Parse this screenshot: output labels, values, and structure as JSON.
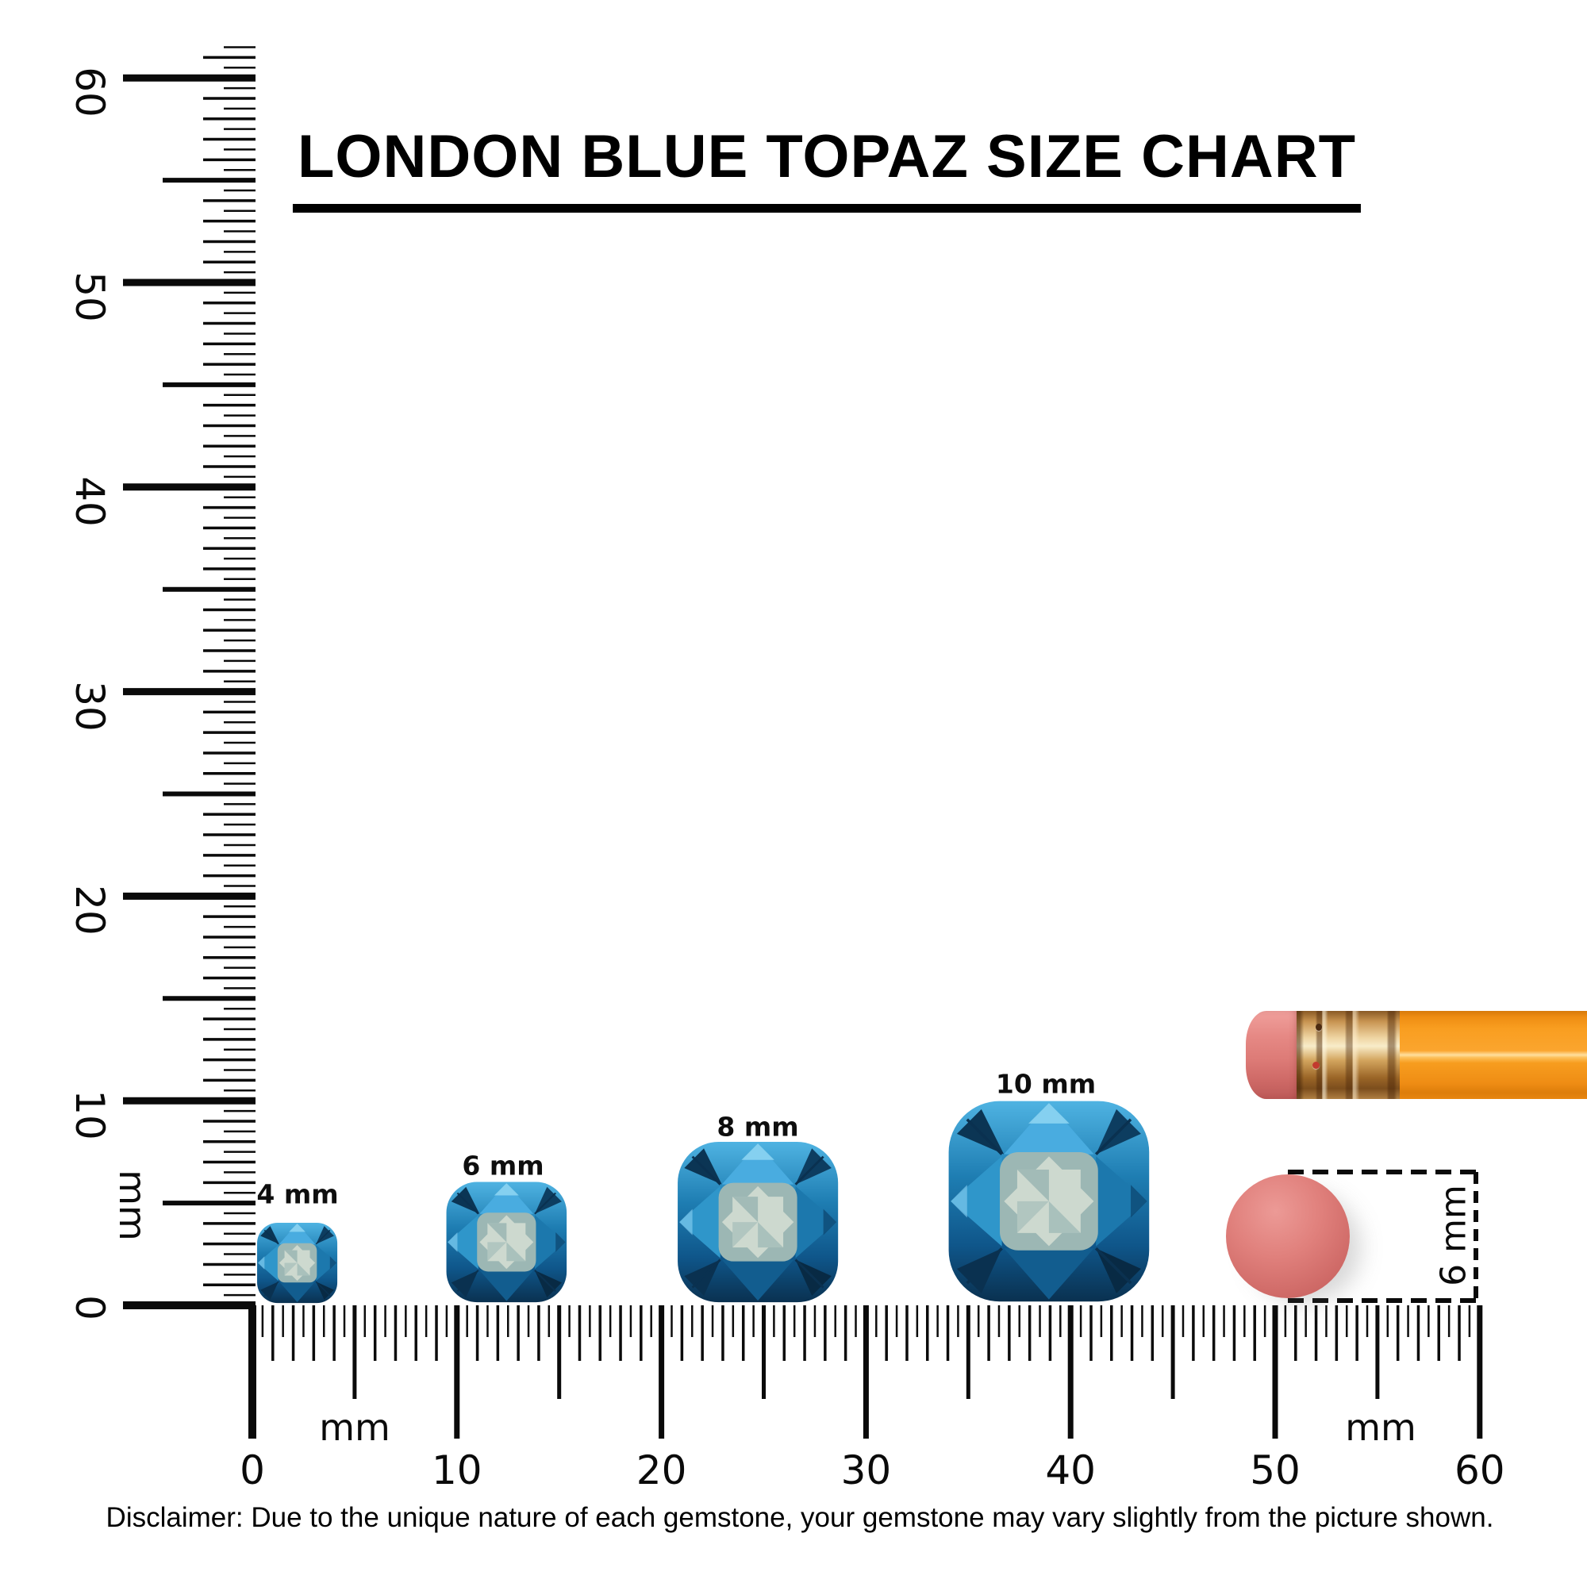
{
  "title": "LONDON BLUE TOPAZ SIZE CHART",
  "rulers": {
    "vertical": {
      "unit_label": "mm",
      "tick_labels": [
        "60",
        "50",
        "40",
        "30",
        "20",
        "10",
        "0"
      ],
      "range_mm": [
        0,
        60
      ],
      "minor_step_mm": 0.5
    },
    "horizontal": {
      "unit_label_left": "mm",
      "unit_label_right": "mm",
      "tick_labels": [
        "0",
        "10",
        "20",
        "30",
        "40",
        "50",
        "60"
      ],
      "range_mm": [
        0,
        60
      ],
      "minor_step_mm": 0.5
    }
  },
  "gems": [
    {
      "label": "4 mm",
      "size_mm": 4
    },
    {
      "label": "6 mm",
      "size_mm": 6
    },
    {
      "label": "8 mm",
      "size_mm": 8
    },
    {
      "label": "10 mm",
      "size_mm": 10
    }
  ],
  "eraser_measurement": {
    "label": "6 mm",
    "diameter_mm": 6
  },
  "disclaimer": "Disclaimer: Due to the unique nature of each gemstone, your gemstone may vary slightly from the picture shown.",
  "colors": {
    "ink": "#0a0a0a",
    "gem_bright": "#4fb3e2",
    "gem_mid": "#1e7db2",
    "gem_deep": "#0f568a",
    "gem_navy": "#0a3150",
    "gem_corner_dark": "#0b3554",
    "gem_facet_light": "#49ace0",
    "gem_sparkle": "#8fd6f2",
    "gem_table": "#9cb7b4",
    "gem_star": "#cdd9cf",
    "gem_star_shadow": "#7fa3a4",
    "pencil_body_orange": "#f89b1d",
    "pencil_highlight": "#ffe2ad",
    "ferrule_gold": "#d9a65f",
    "eraser_pink": "#e0827e",
    "eraser_end_red": "#d06b68"
  }
}
